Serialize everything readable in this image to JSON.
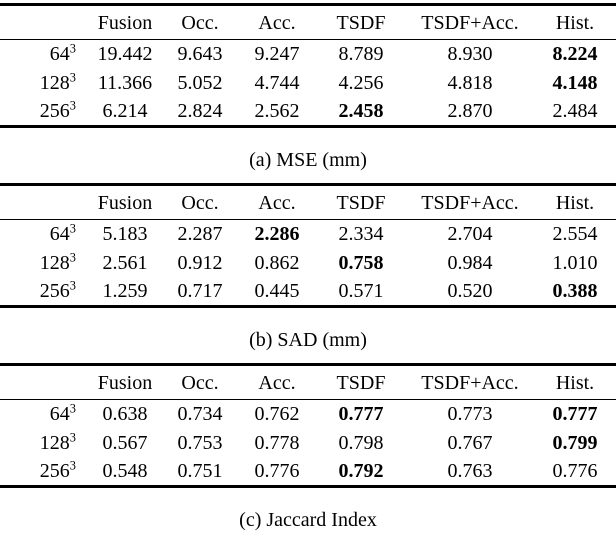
{
  "page": {
    "background": "#ffffff",
    "text_color": "#000000",
    "rule_color": "#000000"
  },
  "tables": [
    {
      "id": "a",
      "caption": "(a) MSE (mm)",
      "columns": [
        "",
        "Fusion",
        "Occ.",
        "Acc.",
        "TSDF",
        "TSDF+Acc.",
        "Hist."
      ],
      "rows": [
        {
          "label": {
            "base": "64",
            "sup": "3"
          },
          "values": [
            "19.442",
            "9.643",
            "9.247",
            "8.789",
            "8.930",
            "8.224"
          ],
          "bold": [
            false,
            false,
            false,
            false,
            false,
            true
          ]
        },
        {
          "label": {
            "base": "128",
            "sup": "3"
          },
          "values": [
            "11.366",
            "5.052",
            "4.744",
            "4.256",
            "4.818",
            "4.148"
          ],
          "bold": [
            false,
            false,
            false,
            false,
            false,
            true
          ]
        },
        {
          "label": {
            "base": "256",
            "sup": "3"
          },
          "values": [
            "6.214",
            "2.824",
            "2.562",
            "2.458",
            "2.870",
            "2.484"
          ],
          "bold": [
            false,
            false,
            false,
            true,
            false,
            false
          ]
        }
      ]
    },
    {
      "id": "b",
      "caption": "(b) SAD (mm)",
      "columns": [
        "",
        "Fusion",
        "Occ.",
        "Acc.",
        "TSDF",
        "TSDF+Acc.",
        "Hist."
      ],
      "rows": [
        {
          "label": {
            "base": "64",
            "sup": "3"
          },
          "values": [
            "5.183",
            "2.287",
            "2.286",
            "2.334",
            "2.704",
            "2.554"
          ],
          "bold": [
            false,
            false,
            true,
            false,
            false,
            false
          ]
        },
        {
          "label": {
            "base": "128",
            "sup": "3"
          },
          "values": [
            "2.561",
            "0.912",
            "0.862",
            "0.758",
            "0.984",
            "1.010"
          ],
          "bold": [
            false,
            false,
            false,
            true,
            false,
            false
          ]
        },
        {
          "label": {
            "base": "256",
            "sup": "3"
          },
          "values": [
            "1.259",
            "0.717",
            "0.445",
            "0.571",
            "0.520",
            "0.388"
          ],
          "bold": [
            false,
            false,
            false,
            false,
            false,
            true
          ]
        }
      ]
    },
    {
      "id": "c",
      "caption": "(c) Jaccard Index",
      "columns": [
        "",
        "Fusion",
        "Occ.",
        "Acc.",
        "TSDF",
        "TSDF+Acc.",
        "Hist."
      ],
      "rows": [
        {
          "label": {
            "base": "64",
            "sup": "3"
          },
          "values": [
            "0.638",
            "0.734",
            "0.762",
            "0.777",
            "0.773",
            "0.777"
          ],
          "bold": [
            false,
            false,
            false,
            true,
            false,
            true
          ]
        },
        {
          "label": {
            "base": "128",
            "sup": "3"
          },
          "values": [
            "0.567",
            "0.753",
            "0.778",
            "0.798",
            "0.767",
            "0.799"
          ],
          "bold": [
            false,
            false,
            false,
            false,
            false,
            true
          ]
        },
        {
          "label": {
            "base": "256",
            "sup": "3"
          },
          "values": [
            "0.548",
            "0.751",
            "0.776",
            "0.792",
            "0.763",
            "0.776"
          ],
          "bold": [
            false,
            false,
            false,
            true,
            false,
            false
          ]
        }
      ]
    }
  ]
}
